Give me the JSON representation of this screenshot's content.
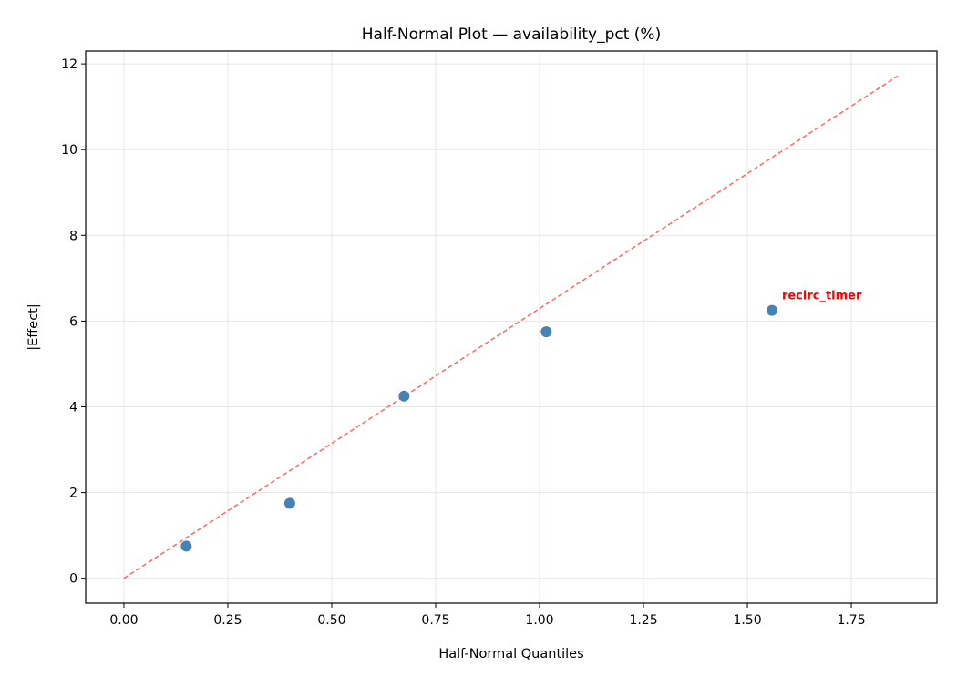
{
  "chart_data": {
    "type": "scatter",
    "title": "Half-Normal Plot — availability_pct (%)",
    "xlabel": "Half-Normal Quantiles",
    "ylabel": "|Effect|",
    "xlim": [
      -0.092,
      1.956
    ],
    "ylim": [
      -0.58,
      12.3
    ],
    "grid": true,
    "xticks": [
      0.0,
      0.25,
      0.5,
      0.75,
      1.0,
      1.25,
      1.5,
      1.75
    ],
    "xtick_labels": [
      "0.00",
      "0.25",
      "0.50",
      "0.75",
      "1.00",
      "1.25",
      "1.50",
      "1.75"
    ],
    "yticks": [
      0,
      2,
      4,
      6,
      8,
      10,
      12
    ],
    "ytick_labels": [
      "0",
      "2",
      "4",
      "6",
      "8",
      "10",
      "12"
    ],
    "points": [
      {
        "x": 0.15,
        "y": 0.75
      },
      {
        "x": 0.399,
        "y": 1.75
      },
      {
        "x": 0.674,
        "y": 4.25
      },
      {
        "x": 1.016,
        "y": 5.75
      },
      {
        "x": 1.559,
        "y": 6.25,
        "label": "recirc_timer"
      }
    ],
    "reference_line": {
      "x": [
        0,
        1.862
      ],
      "y": [
        0,
        11.72
      ],
      "style": "dashed"
    },
    "colors": {
      "points": "#4682b4",
      "reference_line": "#ff6666",
      "annotation": "#ff0000",
      "grid": "#e6e6e6"
    }
  }
}
